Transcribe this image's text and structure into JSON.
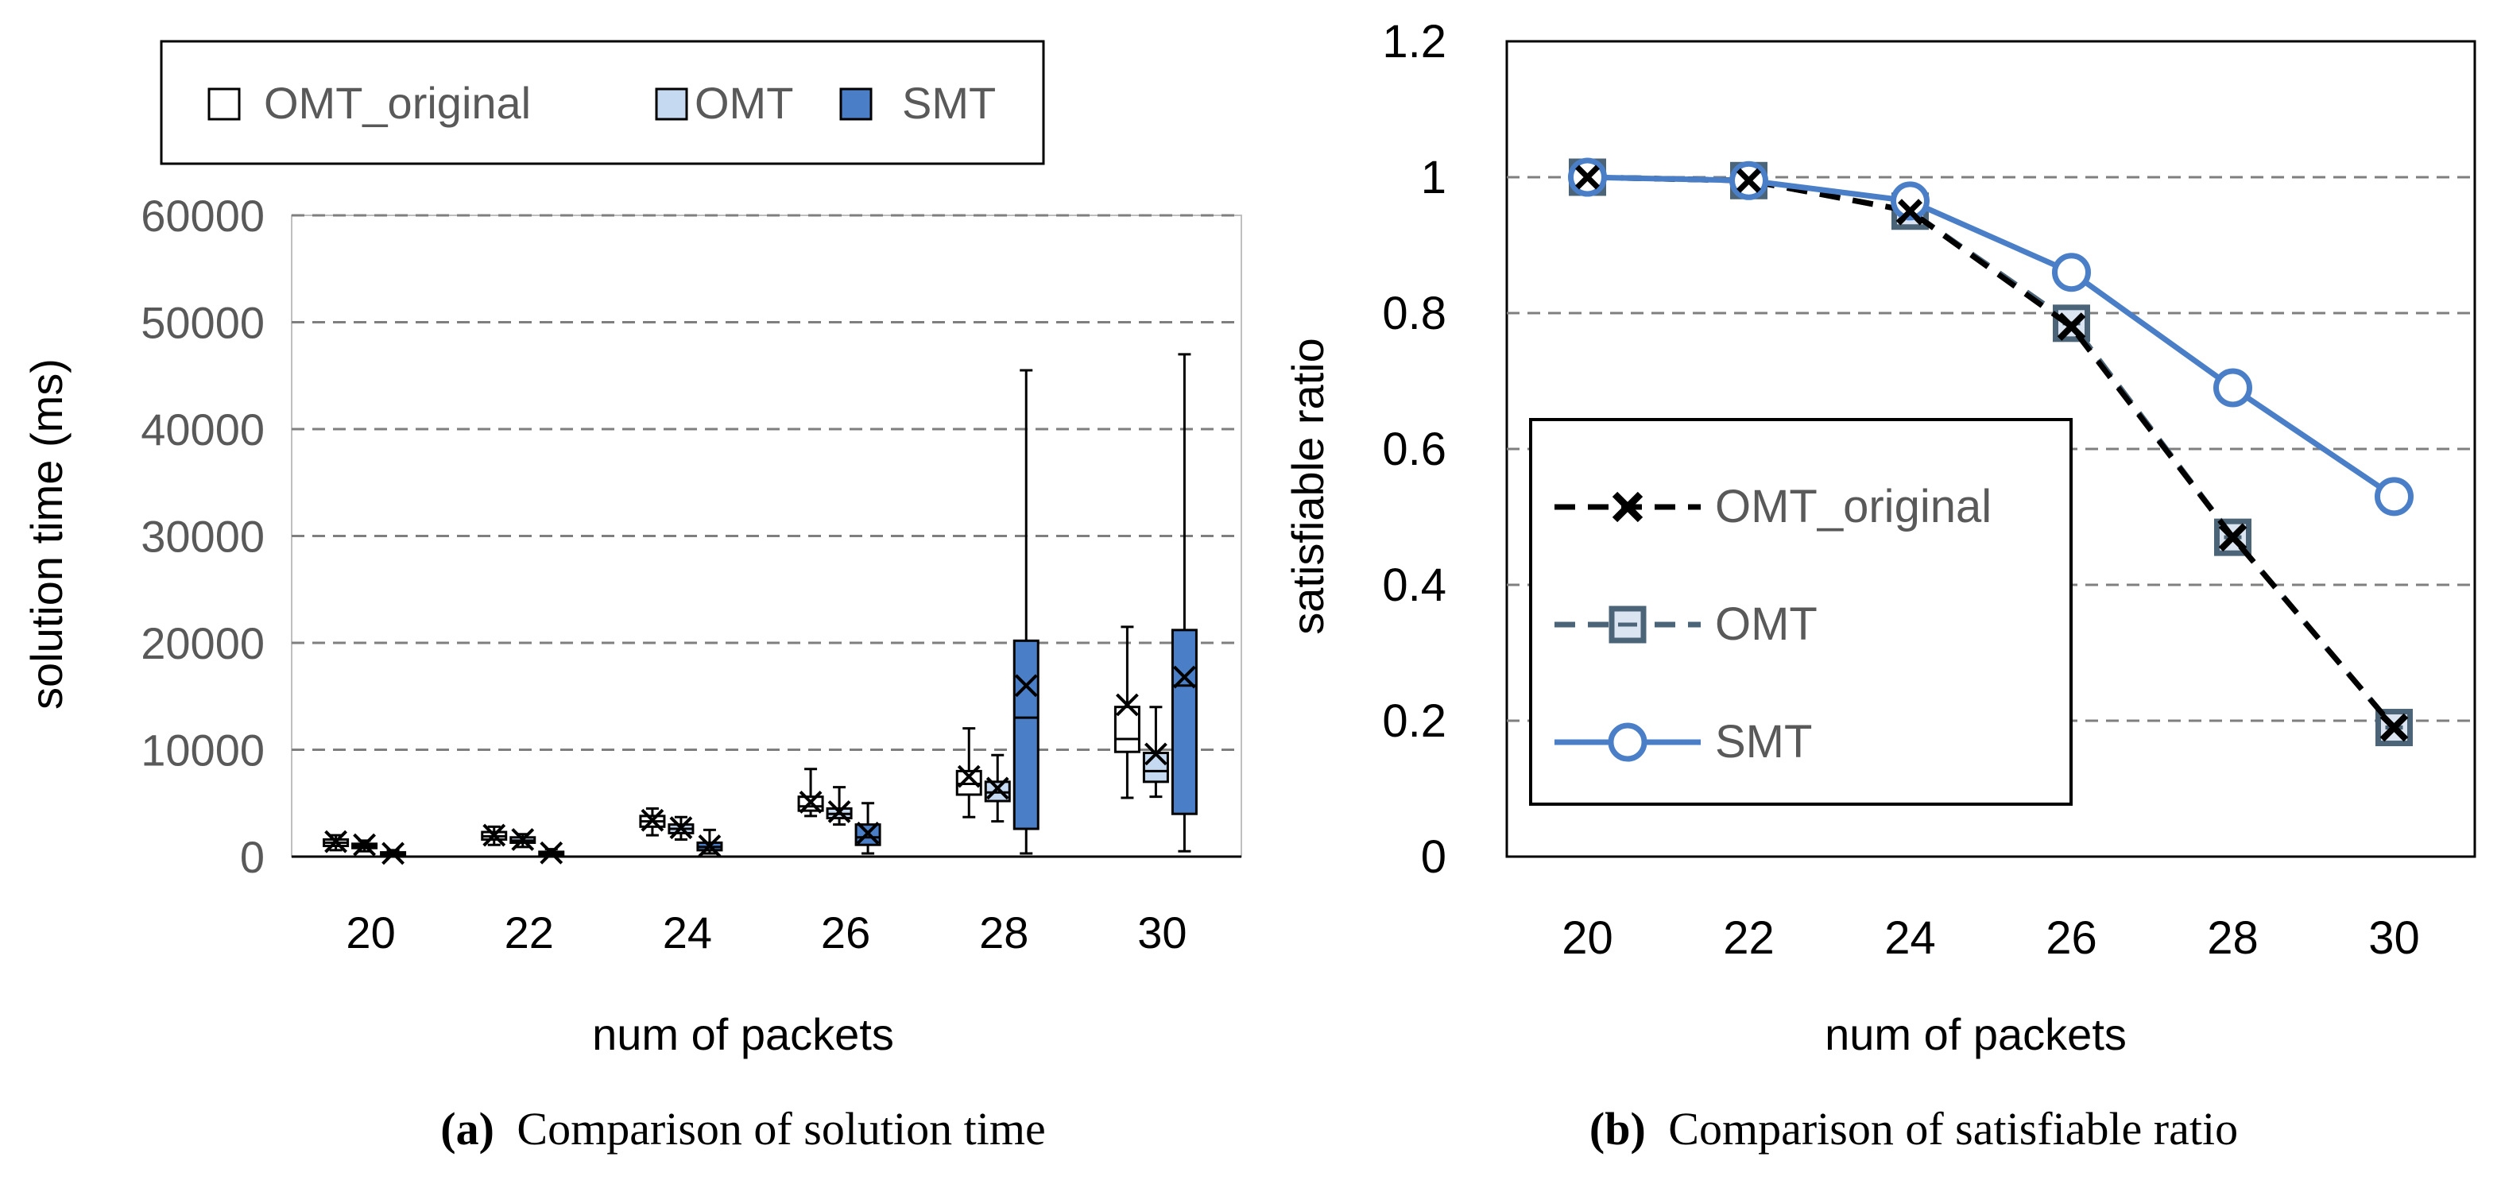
{
  "colors": {
    "axis_text": "#595959",
    "label_text": "#000000",
    "grid": "#7f7f7f",
    "omt_original_fill": "#ffffff",
    "omt_fill": "#c5d9f1",
    "smt_fill": "#4a7fc8",
    "smt_line": "#4a7fc8",
    "omt_line": "#4b6477",
    "omt_marker_fill": "#dbe5f1",
    "omt_original_line": "#000000"
  },
  "chart_data": [
    {
      "type": "box",
      "caption": {
        "letter": "(a)",
        "text": "Comparison of solution time"
      },
      "ylabel": "solution time (ms)",
      "xlabel": "num of packets",
      "ylim": [
        0,
        60000
      ],
      "yticks": [
        0,
        10000,
        20000,
        30000,
        40000,
        50000,
        60000
      ],
      "categories": [
        "20",
        "22",
        "24",
        "26",
        "28",
        "30"
      ],
      "legend": [
        "OMT_original",
        "OMT",
        "SMT"
      ],
      "series": [
        {
          "name": "OMT_original",
          "boxes": [
            {
              "min": 600,
              "q1": 1000,
              "median": 1300,
              "q3": 1600,
              "max": 2000,
              "mean": 1400
            },
            {
              "min": 1100,
              "q1": 1600,
              "median": 1900,
              "q3": 2300,
              "max": 2800,
              "mean": 2000
            },
            {
              "min": 2000,
              "q1": 2800,
              "median": 3300,
              "q3": 3800,
              "max": 4500,
              "mean": 3400
            },
            {
              "min": 3800,
              "q1": 4300,
              "median": 4700,
              "q3": 5600,
              "max": 8200,
              "mean": 5100
            },
            {
              "min": 3700,
              "q1": 5800,
              "median": 6800,
              "q3": 8000,
              "max": 12000,
              "mean": 7500
            },
            {
              "min": 5500,
              "q1": 9800,
              "median": 11000,
              "q3": 14000,
              "max": 21500,
              "mean": 14200
            }
          ]
        },
        {
          "name": "OMT",
          "boxes": [
            {
              "min": 500,
              "q1": 800,
              "median": 1000,
              "q3": 1200,
              "max": 1500,
              "mean": 1100
            },
            {
              "min": 900,
              "q1": 1300,
              "median": 1500,
              "q3": 1800,
              "max": 2100,
              "mean": 1600
            },
            {
              "min": 1600,
              "q1": 2200,
              "median": 2600,
              "q3": 3000,
              "max": 3700,
              "mean": 2700
            },
            {
              "min": 3000,
              "q1": 3600,
              "median": 4000,
              "q3": 4500,
              "max": 6500,
              "mean": 4200
            },
            {
              "min": 3300,
              "q1": 5200,
              "median": 6000,
              "q3": 7000,
              "max": 9500,
              "mean": 6400
            },
            {
              "min": 5600,
              "q1": 7000,
              "median": 8000,
              "q3": 9700,
              "max": 14000,
              "mean": 9600
            }
          ]
        },
        {
          "name": "SMT",
          "boxes": [
            {
              "min": 100,
              "q1": 200,
              "median": 300,
              "q3": 400,
              "max": 600,
              "mean": 300
            },
            {
              "min": 100,
              "q1": 200,
              "median": 300,
              "q3": 450,
              "max": 700,
              "mean": 350
            },
            {
              "min": 300,
              "q1": 600,
              "median": 900,
              "q3": 1300,
              "max": 2500,
              "mean": 1000
            },
            {
              "min": 300,
              "q1": 1100,
              "median": 1800,
              "q3": 3000,
              "max": 5000,
              "mean": 2200
            },
            {
              "min": 300,
              "q1": 2600,
              "median": 13000,
              "q3": 20200,
              "max": 45500,
              "mean": 16000
            },
            {
              "min": 500,
              "q1": 4000,
              "median": 16000,
              "q3": 21200,
              "max": 47000,
              "mean": 16800
            }
          ]
        }
      ]
    },
    {
      "type": "line",
      "caption": {
        "letter": "(b)",
        "text": "Comparison of satisfiable ratio"
      },
      "ylabel": "satisfiable ratio",
      "xlabel": "num of packets",
      "ylim": [
        0,
        1.2
      ],
      "yticks": [
        0,
        0.2,
        0.4,
        0.6,
        0.8,
        1,
        1.2
      ],
      "ytick_labels": [
        "0",
        "0.2",
        "0.4",
        "0.6",
        "0.8",
        "1",
        "1.2"
      ],
      "categories": [
        "20",
        "22",
        "24",
        "26",
        "28",
        "30"
      ],
      "series": [
        {
          "name": "OMT_original",
          "values": [
            1.0,
            0.995,
            0.95,
            0.78,
            0.47,
            0.19
          ],
          "style": "dashed",
          "marker": "x"
        },
        {
          "name": "OMT",
          "values": [
            1.0,
            0.995,
            0.95,
            0.785,
            0.47,
            0.19
          ],
          "style": "dashed",
          "marker": "square"
        },
        {
          "name": "SMT",
          "values": [
            1.0,
            0.995,
            0.965,
            0.86,
            0.69,
            0.53
          ],
          "style": "solid",
          "marker": "circle"
        }
      ],
      "legend": [
        "OMT_original",
        "OMT",
        "SMT"
      ]
    }
  ]
}
